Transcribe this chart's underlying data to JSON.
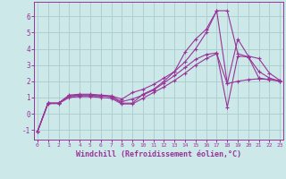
{
  "background_color": "#cce8e8",
  "grid_color": "#aacccc",
  "line_color": "#993399",
  "marker": "+",
  "xlabel": "Windchill (Refroidissement éolien,°C)",
  "xlabel_fontsize": 6.0,
  "yticks": [
    -1,
    0,
    1,
    2,
    3,
    4,
    5,
    6
  ],
  "xticks": [
    0,
    1,
    2,
    3,
    4,
    5,
    6,
    7,
    8,
    9,
    10,
    11,
    12,
    13,
    14,
    15,
    16,
    17,
    18,
    19,
    20,
    21,
    22,
    23
  ],
  "xlim": [
    -0.3,
    23.3
  ],
  "ylim": [
    -1.6,
    6.9
  ],
  "curve1_x": [
    0,
    1,
    2,
    3,
    4,
    5,
    6,
    7,
    8,
    9,
    10,
    11,
    12,
    13,
    14,
    15,
    16,
    17,
    18,
    19,
    20,
    21,
    22,
    23
  ],
  "curve1_y": [
    -1.1,
    0.65,
    0.65,
    1.1,
    1.1,
    1.1,
    1.1,
    1.05,
    0.65,
    0.65,
    1.2,
    1.5,
    2.0,
    2.6,
    3.8,
    4.6,
    5.2,
    6.35,
    6.35,
    3.7,
    3.5,
    2.6,
    2.2,
    2.0
  ],
  "curve2_x": [
    0,
    1,
    2,
    3,
    4,
    5,
    6,
    7,
    8,
    9,
    10,
    11,
    12,
    13,
    14,
    15,
    16,
    17,
    18,
    19,
    20,
    21,
    22,
    23
  ],
  "curve2_y": [
    -1.1,
    0.65,
    0.65,
    1.15,
    1.2,
    1.2,
    1.15,
    1.1,
    0.9,
    1.3,
    1.5,
    1.8,
    2.2,
    2.6,
    3.2,
    4.0,
    5.0,
    6.35,
    1.85,
    4.6,
    3.55,
    3.4,
    2.5,
    2.05
  ],
  "curve3_x": [
    0,
    1,
    2,
    3,
    4,
    5,
    6,
    7,
    8,
    9,
    10,
    11,
    12,
    13,
    14,
    15,
    16,
    17,
    18,
    19,
    20,
    21,
    22,
    23
  ],
  "curve3_y": [
    -1.1,
    0.65,
    0.65,
    1.1,
    1.15,
    1.15,
    1.1,
    1.05,
    0.75,
    0.9,
    1.15,
    1.45,
    1.9,
    2.35,
    2.85,
    3.35,
    3.65,
    3.75,
    0.4,
    3.55,
    3.5,
    2.2,
    2.1,
    2.0
  ],
  "curve4_x": [
    0,
    1,
    2,
    3,
    4,
    5,
    6,
    7,
    8,
    9,
    10,
    11,
    12,
    13,
    14,
    15,
    16,
    17,
    18,
    19,
    20,
    21,
    22,
    23
  ],
  "curve4_y": [
    -1.1,
    0.62,
    0.62,
    1.0,
    1.05,
    1.05,
    1.0,
    0.95,
    0.6,
    0.6,
    0.95,
    1.3,
    1.65,
    2.05,
    2.5,
    3.0,
    3.4,
    3.7,
    1.85,
    2.0,
    2.1,
    2.15,
    2.1,
    2.05
  ]
}
